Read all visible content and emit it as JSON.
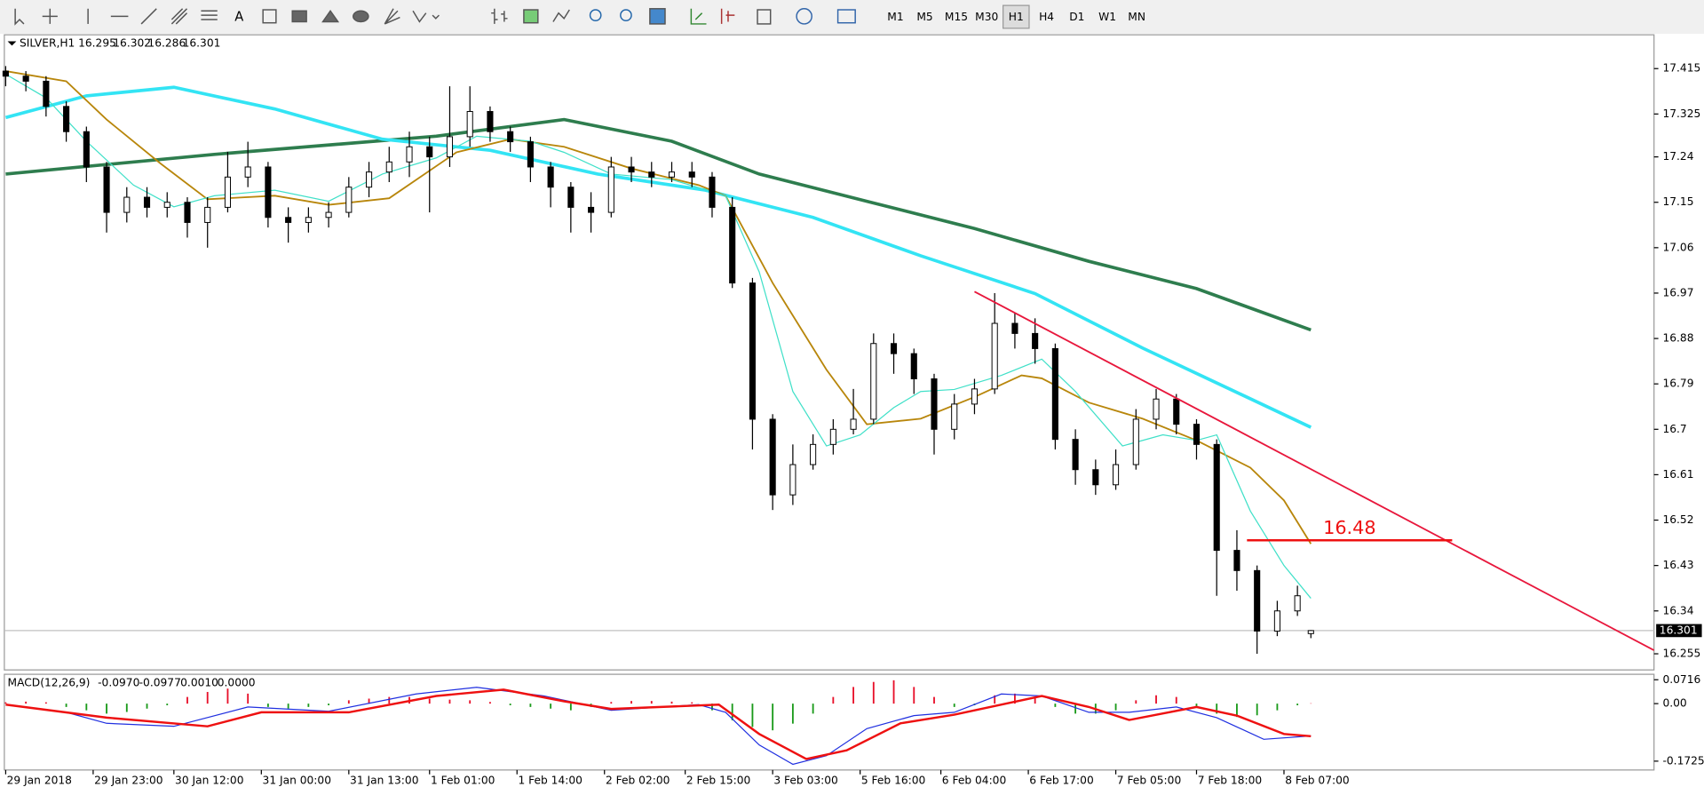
{
  "toolbar": {
    "text_tool": "A",
    "timeframes": [
      "M1",
      "M5",
      "M15",
      "M30",
      "H1",
      "H4",
      "D1",
      "W1",
      "MN"
    ],
    "active": "H1"
  },
  "chart_data": [
    {
      "type": "candlestick",
      "title": "SILVER,H1",
      "x": [
        0,
        3,
        6,
        9,
        12,
        15,
        18,
        21,
        24,
        27,
        30,
        33,
        36,
        39,
        42,
        45,
        48,
        51,
        54,
        57,
        60,
        63,
        66,
        69,
        72,
        75,
        78,
        81,
        84,
        87,
        90,
        93,
        96,
        99,
        102,
        105,
        108,
        111,
        114,
        117,
        120,
        123,
        126,
        129,
        132,
        135,
        138,
        141,
        144,
        147,
        150,
        153,
        156,
        159,
        162,
        165,
        168,
        171,
        174,
        177,
        180,
        183,
        186,
        189,
        192,
        194
      ],
      "open": [
        17.41,
        17.4,
        17.39,
        17.34,
        17.29,
        17.22,
        17.13,
        17.16,
        17.14,
        17.15,
        17.11,
        17.14,
        17.2,
        17.22,
        17.12,
        17.11,
        17.12,
        17.13,
        17.18,
        17.21,
        17.23,
        17.26,
        17.24,
        17.28,
        17.33,
        17.29,
        17.27,
        17.22,
        17.18,
        17.14,
        17.13,
        17.22,
        17.21,
        17.2,
        17.21,
        17.2,
        17.14,
        16.99,
        16.72,
        16.57,
        16.63,
        16.67,
        16.7,
        16.72,
        16.87,
        16.85,
        16.8,
        16.7,
        16.75,
        16.78,
        16.91,
        16.89,
        16.86,
        16.68,
        16.62,
        16.59,
        16.63,
        16.72,
        16.76,
        16.71,
        16.67,
        16.46,
        16.42,
        16.3,
        16.34,
        16.295
      ],
      "high": [
        17.42,
        17.41,
        17.4,
        17.35,
        17.3,
        17.23,
        17.18,
        17.18,
        17.17,
        17.16,
        17.16,
        17.25,
        17.27,
        17.23,
        17.14,
        17.14,
        17.15,
        17.2,
        17.23,
        17.26,
        17.29,
        17.28,
        17.38,
        17.38,
        17.34,
        17.3,
        17.28,
        17.23,
        17.19,
        17.17,
        17.24,
        17.24,
        17.23,
        17.23,
        17.23,
        17.21,
        17.16,
        17.0,
        16.73,
        16.67,
        16.69,
        16.72,
        16.78,
        16.89,
        16.89,
        16.86,
        16.81,
        16.77,
        16.8,
        16.97,
        16.93,
        16.92,
        16.87,
        16.7,
        16.64,
        16.66,
        16.74,
        16.78,
        16.77,
        16.72,
        16.68,
        16.5,
        16.43,
        16.36,
        16.39,
        16.302
      ],
      "low": [
        17.38,
        17.37,
        17.32,
        17.27,
        17.19,
        17.09,
        17.11,
        17.12,
        17.12,
        17.08,
        17.06,
        17.13,
        17.18,
        17.1,
        17.07,
        17.09,
        17.1,
        17.12,
        17.16,
        17.19,
        17.2,
        17.13,
        17.22,
        17.26,
        17.27,
        17.25,
        17.19,
        17.14,
        17.09,
        17.09,
        17.12,
        17.19,
        17.18,
        17.19,
        17.18,
        17.12,
        16.98,
        16.66,
        16.54,
        16.55,
        16.62,
        16.65,
        16.69,
        16.71,
        16.81,
        16.77,
        16.65,
        16.68,
        16.73,
        16.77,
        16.86,
        16.83,
        16.66,
        16.59,
        16.57,
        16.58,
        16.62,
        16.7,
        16.69,
        16.64,
        16.37,
        16.38,
        16.255,
        16.29,
        16.33,
        16.286
      ],
      "close": [
        17.4,
        17.39,
        17.34,
        17.29,
        17.22,
        17.13,
        17.16,
        17.14,
        17.15,
        17.11,
        17.14,
        17.2,
        17.22,
        17.12,
        17.11,
        17.12,
        17.13,
        17.18,
        17.21,
        17.23,
        17.26,
        17.24,
        17.28,
        17.33,
        17.29,
        17.27,
        17.22,
        17.18,
        17.14,
        17.13,
        17.22,
        17.21,
        17.2,
        17.21,
        17.2,
        17.14,
        16.99,
        16.72,
        16.57,
        16.63,
        16.67,
        16.7,
        16.72,
        16.87,
        16.85,
        16.8,
        16.7,
        16.75,
        16.78,
        16.91,
        16.89,
        16.86,
        16.68,
        16.62,
        16.59,
        16.63,
        16.72,
        16.76,
        16.71,
        16.67,
        16.46,
        16.42,
        16.3,
        16.34,
        16.37,
        16.301
      ],
      "series": [
        {
          "color": "#2e7d4e",
          "x": [
            0,
            31,
            64,
            83,
            99,
            112,
            128,
            144,
            161,
            177,
            194
          ],
          "values": [
            17.206,
            17.245,
            17.281,
            17.314,
            17.271,
            17.206,
            17.152,
            17.098,
            17.033,
            16.979,
            16.897
          ]
        },
        {
          "color": "#33e4f4",
          "x": [
            0,
            12,
            25,
            40,
            56,
            72,
            88,
            104,
            120,
            136,
            153,
            169,
            194
          ],
          "values": [
            17.318,
            17.361,
            17.378,
            17.335,
            17.275,
            17.253,
            17.206,
            17.174,
            17.12,
            17.044,
            16.969,
            16.861,
            16.704
          ]
        },
        {
          "color": "#b8860b",
          "x": [
            0,
            9,
            15,
            23,
            30,
            40,
            48,
            57,
            67,
            75,
            83,
            93,
            103,
            107,
            114,
            122,
            128,
            136,
            144,
            151,
            154,
            161,
            169,
            177,
            185,
            190,
            194
          ],
          "values": [
            17.41,
            17.39,
            17.314,
            17.227,
            17.156,
            17.163,
            17.145,
            17.158,
            17.249,
            17.275,
            17.26,
            17.217,
            17.184,
            17.163,
            16.99,
            16.818,
            16.71,
            16.721,
            16.764,
            16.807,
            16.801,
            16.753,
            16.721,
            16.678,
            16.624,
            16.559,
            16.473
          ]
        },
        {
          "color": "#40e0c8",
          "x": [
            0,
            6,
            12,
            19,
            25,
            31,
            40,
            48,
            56,
            64,
            70,
            78,
            83,
            90,
            99,
            107,
            112,
            117,
            122,
            127,
            132,
            136,
            141,
            148,
            154,
            159,
            166,
            172,
            177,
            180,
            185,
            190,
            194
          ],
          "values": [
            17.404,
            17.357,
            17.271,
            17.184,
            17.141,
            17.163,
            17.174,
            17.152,
            17.206,
            17.238,
            17.281,
            17.271,
            17.249,
            17.206,
            17.195,
            17.163,
            17.012,
            16.775,
            16.667,
            16.689,
            16.743,
            16.775,
            16.779,
            16.807,
            16.839,
            16.775,
            16.667,
            16.689,
            16.678,
            16.689,
            16.538,
            16.43,
            16.365
          ]
        }
      ],
      "trendline": {
        "color": "#e8173c",
        "x": [
          144,
          245
        ],
        "y": [
          16.973,
          16.262
        ]
      },
      "level": {
        "color": "#ee1111",
        "x": [
          184.5,
          215
        ],
        "value": 16.48
      },
      "xlim": [
        -0.2,
        245
      ],
      "ylim": [
        16.223,
        17.482
      ],
      "yticks": [
        17.415,
        17.325,
        17.24,
        17.15,
        17.06,
        16.97,
        16.88,
        16.79,
        16.7,
        16.61,
        16.52,
        16.43,
        16.34,
        16.255
      ],
      "xticks": [
        {
          "value": 0,
          "label": "29 Jan 2018"
        },
        {
          "value": 13,
          "label": "29 Jan 23:00"
        },
        {
          "value": 25,
          "label": "30 Jan 12:00"
        },
        {
          "value": 38,
          "label": "31 Jan 00:00"
        },
        {
          "value": 51,
          "label": "31 Jan 13:00"
        },
        {
          "value": 63,
          "label": "1 Feb 01:00"
        },
        {
          "value": 76,
          "label": "1 Feb 14:00"
        },
        {
          "value": 89,
          "label": "2 Feb 02:00"
        },
        {
          "value": 101,
          "label": "2 Feb 15:00"
        },
        {
          "value": 114,
          "label": "3 Feb 03:00"
        },
        {
          "value": 127,
          "label": "5 Feb 16:00"
        },
        {
          "value": 139,
          "label": "6 Feb 04:00"
        },
        {
          "value": 152,
          "label": "6 Feb 17:00"
        },
        {
          "value": 165,
          "label": "7 Feb 05:00"
        },
        {
          "value": 177,
          "label": "7 Feb 18:00"
        },
        {
          "value": 190,
          "label": "8 Feb 07:00"
        }
      ],
      "grid": false
    },
    {
      "type": "macd",
      "title": "MACD(12,26,9)",
      "header_values": [
        "-0.0970",
        "-0.0977",
        "0.0010",
        "0.0000"
      ],
      "xlim": [
        -0.2,
        245
      ],
      "ylim": [
        -0.199,
        0.088
      ],
      "yticks": [
        0.0716,
        {
          "value": 0,
          "label": "0.00"
        },
        -0.1725
      ],
      "histogram": {
        "up_color": "#e8102a",
        "down_color": "#1a9a1a",
        "x": [
          0,
          3,
          6,
          9,
          12,
          15,
          18,
          21,
          24,
          27,
          30,
          33,
          36,
          39,
          42,
          45,
          48,
          51,
          54,
          57,
          60,
          63,
          66,
          69,
          72,
          75,
          78,
          81,
          84,
          87,
          90,
          93,
          96,
          99,
          102,
          105,
          108,
          111,
          114,
          117,
          120,
          123,
          126,
          129,
          132,
          135,
          138,
          141,
          144,
          147,
          150,
          153,
          156,
          159,
          162,
          165,
          168,
          171,
          174,
          177,
          180,
          183,
          186,
          189,
          192,
          194
        ],
        "values": [
          0.004,
          0.006,
          0.004,
          -0.01,
          -0.02,
          -0.03,
          -0.025,
          -0.015,
          -0.005,
          0.02,
          0.035,
          0.045,
          0.03,
          -0.01,
          -0.015,
          -0.01,
          -0.005,
          0.01,
          0.015,
          0.02,
          0.02,
          0.015,
          0.012,
          0.01,
          0.005,
          -0.005,
          -0.01,
          -0.015,
          -0.02,
          -0.01,
          0.005,
          0.008,
          0.008,
          0.006,
          0.004,
          -0.02,
          -0.05,
          -0.07,
          -0.08,
          -0.06,
          -0.03,
          0.02,
          0.05,
          0.065,
          0.07,
          0.05,
          0.02,
          -0.01,
          -0.005,
          0.025,
          0.03,
          0.02,
          -0.01,
          -0.03,
          -0.03,
          -0.02,
          0.01,
          0.025,
          0.02,
          -0.01,
          -0.03,
          -0.04,
          -0.035,
          -0.02,
          -0.005,
          0.001
        ]
      },
      "series": [
        {
          "color": "#2030e0",
          "x": [
            0,
            9,
            15,
            25,
            36,
            48,
            61,
            70,
            80,
            90,
            103,
            107,
            112,
            117,
            122,
            128,
            135,
            141,
            148,
            154,
            161,
            167,
            174,
            180,
            187,
            194
          ],
          "values": [
            -0.003,
            -0.026,
            -0.059,
            -0.068,
            -0.01,
            -0.023,
            0.029,
            0.049,
            0.023,
            -0.02,
            -0.003,
            -0.026,
            -0.124,
            -0.182,
            -0.156,
            -0.075,
            -0.036,
            -0.026,
            0.029,
            0.023,
            -0.026,
            -0.026,
            -0.01,
            -0.042,
            -0.107,
            -0.097
          ]
        },
        {
          "color": "#ee1111",
          "x": [
            0,
            15,
            30,
            38,
            51,
            64,
            74,
            83,
            90,
            106,
            112,
            119,
            125,
            133,
            141,
            154,
            161,
            167,
            177,
            183,
            190,
            194
          ],
          "values": [
            -0.003,
            -0.042,
            -0.068,
            -0.026,
            -0.026,
            0.023,
            0.042,
            0.007,
            -0.016,
            -0.003,
            -0.091,
            -0.166,
            -0.14,
            -0.059,
            -0.033,
            0.023,
            -0.01,
            -0.049,
            -0.01,
            -0.036,
            -0.091,
            -0.0977
          ]
        }
      ]
    }
  ]
}
